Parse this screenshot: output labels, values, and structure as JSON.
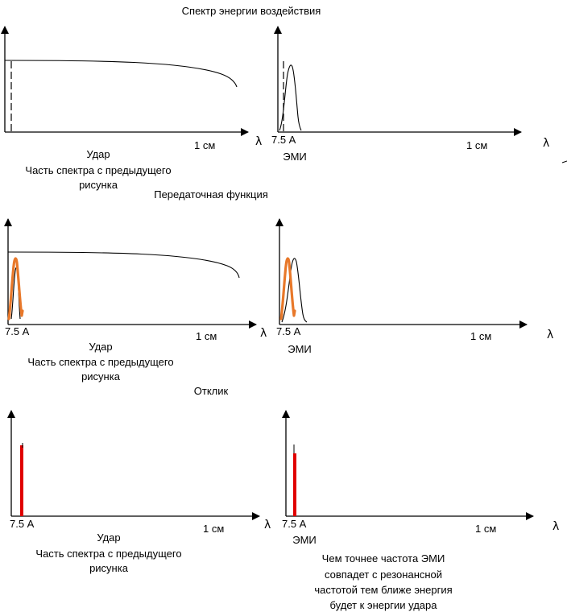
{
  "titles": {
    "spectrum": "Спектр энергии воздействия",
    "transfer": "Передаточная функция",
    "response": "Отклик"
  },
  "axis": {
    "lambda": "λ",
    "tick_small": "7.5 А",
    "tick_large": "1 см"
  },
  "labels": {
    "impact": "Удар",
    "prev_part_line1": "Часть спектра с предыдущего",
    "prev_part_line2": "рисунка",
    "emi": "ЭМИ"
  },
  "note": {
    "line1": "Чем точнее частота ЭМИ",
    "line2": "совпадет с резонансной",
    "line3": "частотой тем ближе энергия",
    "line4": "будет к энергии удара"
  },
  "colors": {
    "axis": "#000000",
    "transfer_curve": "#e8782a",
    "response_line": "#e00000"
  }
}
